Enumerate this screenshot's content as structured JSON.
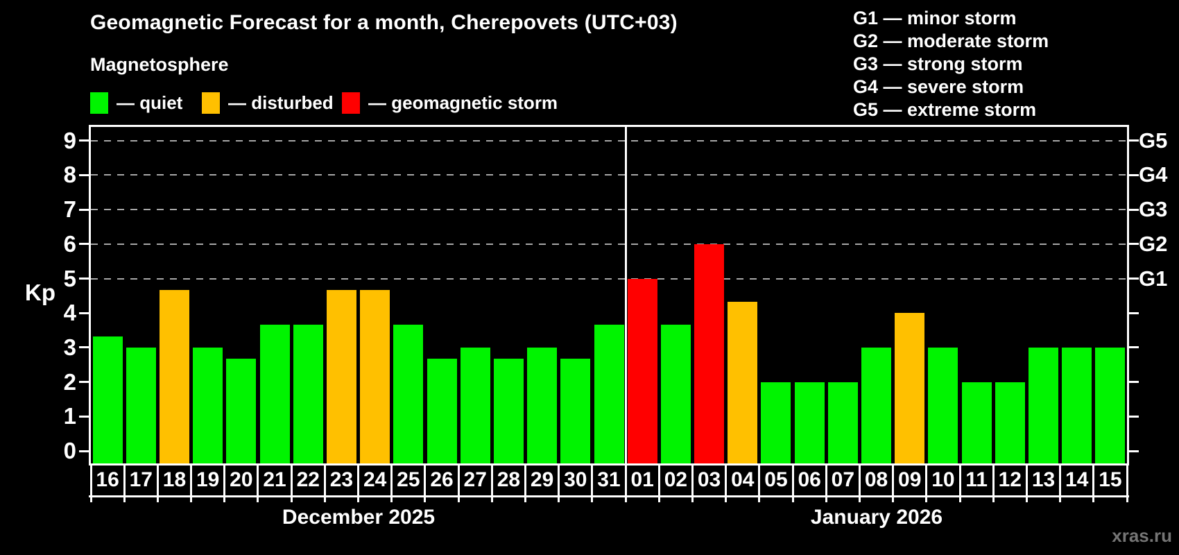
{
  "title": "Geomagnetic Forecast for a month, Cherepovets (UTC+03)",
  "subtitle": "Magnetosphere",
  "legend": [
    {
      "name": "quiet",
      "color": "#00f400",
      "label": "— quiet"
    },
    {
      "name": "disturbed",
      "color": "#ffc000",
      "label": "— disturbed"
    },
    {
      "name": "storm",
      "color": "#ff0000",
      "label": "— geomagnetic storm"
    }
  ],
  "storm_scale_legend": [
    "G1 — minor storm",
    "G2 — moderate storm",
    "G3 — strong storm",
    "G4 — severe storm",
    "G5 — extreme storm"
  ],
  "watermark": "xras.ru",
  "chart_data": {
    "type": "bar",
    "title": "Geomagnetic Forecast for a month, Cherepovets (UTC+03)",
    "ylabel": "Kp",
    "ylim": [
      0,
      9
    ],
    "yticks": [
      0,
      1,
      2,
      3,
      4,
      5,
      6,
      7,
      8,
      9
    ],
    "gridlines_at": [
      5,
      6,
      7,
      8,
      9
    ],
    "grid": "dashed horizontal at storm levels only",
    "legend_position": "top",
    "storm_levels": [
      {
        "kp": 5,
        "label": "G1"
      },
      {
        "kp": 6,
        "label": "G2"
      },
      {
        "kp": 7,
        "label": "G3"
      },
      {
        "kp": 8,
        "label": "G4"
      },
      {
        "kp": 9,
        "label": "G5"
      }
    ],
    "status_colors": {
      "quiet": "#00f400",
      "disturbed": "#ffc000",
      "storm": "#ff0000"
    },
    "months": [
      {
        "label": "December 2025",
        "count": 16
      },
      {
        "label": "January 2026",
        "count": 15
      }
    ],
    "points": [
      {
        "day": "16",
        "value": 3.33,
        "status": "quiet"
      },
      {
        "day": "17",
        "value": 3.0,
        "status": "quiet"
      },
      {
        "day": "18",
        "value": 4.67,
        "status": "disturbed"
      },
      {
        "day": "19",
        "value": 3.0,
        "status": "quiet"
      },
      {
        "day": "20",
        "value": 2.67,
        "status": "quiet"
      },
      {
        "day": "21",
        "value": 3.67,
        "status": "quiet"
      },
      {
        "day": "22",
        "value": 3.67,
        "status": "quiet"
      },
      {
        "day": "23",
        "value": 4.67,
        "status": "disturbed"
      },
      {
        "day": "24",
        "value": 4.67,
        "status": "disturbed"
      },
      {
        "day": "25",
        "value": 3.67,
        "status": "quiet"
      },
      {
        "day": "26",
        "value": 2.67,
        "status": "quiet"
      },
      {
        "day": "27",
        "value": 3.0,
        "status": "quiet"
      },
      {
        "day": "28",
        "value": 2.67,
        "status": "quiet"
      },
      {
        "day": "29",
        "value": 3.0,
        "status": "quiet"
      },
      {
        "day": "30",
        "value": 2.67,
        "status": "quiet"
      },
      {
        "day": "31",
        "value": 3.67,
        "status": "quiet"
      },
      {
        "day": "01",
        "value": 5.0,
        "status": "storm"
      },
      {
        "day": "02",
        "value": 3.67,
        "status": "quiet"
      },
      {
        "day": "03",
        "value": 6.0,
        "status": "storm"
      },
      {
        "day": "04",
        "value": 4.33,
        "status": "disturbed"
      },
      {
        "day": "05",
        "value": 2.0,
        "status": "quiet"
      },
      {
        "day": "06",
        "value": 2.0,
        "status": "quiet"
      },
      {
        "day": "07",
        "value": 2.0,
        "status": "quiet"
      },
      {
        "day": "08",
        "value": 3.0,
        "status": "quiet"
      },
      {
        "day": "09",
        "value": 4.0,
        "status": "disturbed"
      },
      {
        "day": "10",
        "value": 3.0,
        "status": "quiet"
      },
      {
        "day": "11",
        "value": 2.0,
        "status": "quiet"
      },
      {
        "day": "12",
        "value": 2.0,
        "status": "quiet"
      },
      {
        "day": "13",
        "value": 3.0,
        "status": "quiet"
      },
      {
        "day": "14",
        "value": 3.0,
        "status": "quiet"
      },
      {
        "day": "15",
        "value": 3.0,
        "status": "quiet"
      }
    ]
  }
}
